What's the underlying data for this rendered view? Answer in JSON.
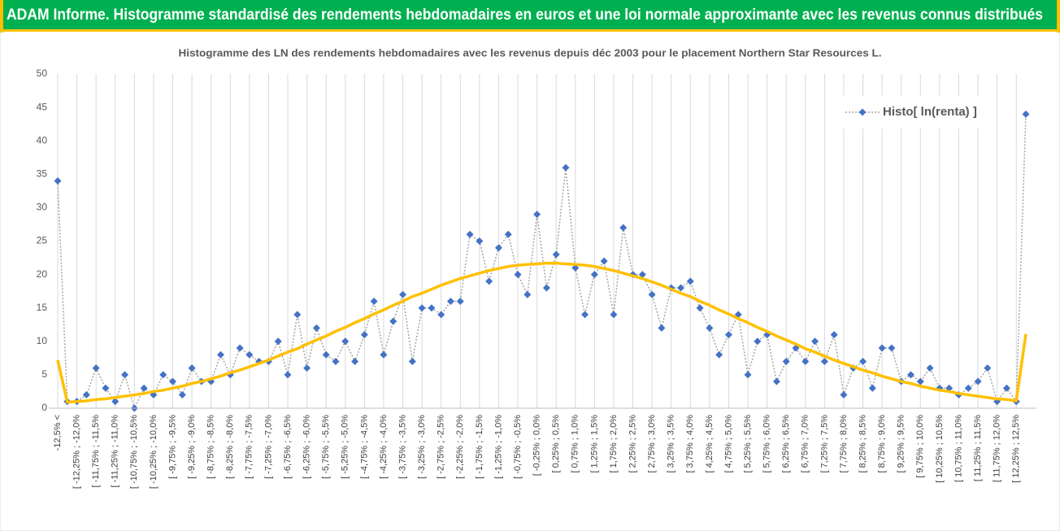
{
  "chart_data": {
    "type": "line",
    "banner": "ADAM Informe. Histogramme standardisé des rendements hebdomadaires en euros et une loi normale approximante avec les revenus connus distribués",
    "title": "Histogramme des LN des rendements hebdomadaires avec les revenus depuis déc 2003 pour le placement Northern  Star Resources L.",
    "categories": [
      "-12,5% <",
      null,
      "[ -12,25% ; -12,0%",
      null,
      "[ -11,75% ; -11,5%",
      null,
      "[ -11,25% ; -11,0%",
      null,
      "[ -10,75% ; -10,5%",
      null,
      "[ -10,25% ; -10,0%",
      null,
      "[ -9,75% ; -9,5%",
      null,
      "[ -9,25% ; -9,0%",
      null,
      "[ -8,75% ; -8,5%",
      null,
      "[ -8,25% ; -8,0%",
      null,
      "[ -7,75% ; -7,5%",
      null,
      "[ -7,25% ; -7,0%",
      null,
      "[ -6,75% ; -6,5%",
      null,
      "[ -6,25% ; -6,0%",
      null,
      "[ -5,75% ; -5,5%",
      null,
      "[ -5,25% ; -5,0%",
      null,
      "[ -4,75% ; -4,5%",
      null,
      "[ -4,25% ; -4,0%",
      null,
      "[ -3,75% ; -3,5%",
      null,
      "[ -3,25% ; -3,0%",
      null,
      "[ -2,75% ; -2,5%",
      null,
      "[ -2,25% ; -2,0%",
      null,
      "[ -1,75% ; -1,5%",
      null,
      "[ -1,25% ; -1,0%",
      null,
      "[ -0,75% ; -0,5%",
      null,
      "[ -0,25% ; 0,0%",
      null,
      "[ 0,25% ; 0,5%",
      null,
      "[ 0,75% ; 1,0%",
      null,
      "[ 1,25% ; 1,5%",
      null,
      "[ 1,75% ; 2,0%",
      null,
      "[ 2,25% ; 2,5%",
      null,
      "[ 2,75% ; 3,0%",
      null,
      "[ 3,25% ; 3,5%",
      null,
      "[ 3,75% ; 4,0%",
      null,
      "[ 4,25% ; 4,5%",
      null,
      "[ 4,75% ; 5,0%",
      null,
      "[ 5,25% ; 5,5%",
      null,
      "[ 5,75% ; 6,0%",
      null,
      "[ 6,25% ; 6,5%",
      null,
      "[ 6,75% ; 7,0%",
      null,
      "[ 7,25% ; 7,5%",
      null,
      "[ 7,75% ; 8,0%",
      null,
      "[ 8,25% ; 8,5%",
      null,
      "[ 8,75% ; 9,0%",
      null,
      "[ 9,25% ; 9,5%",
      null,
      "[ 9,75% ; 10,0%",
      null,
      "[ 10,25% ; 10,5%",
      null,
      "[ 10,75% ; 11,0%",
      null,
      "[ 11,25% ; 11,5%",
      null,
      "[ 11,75% ; 12,0%",
      null,
      "[ 12,25% ; 12,5%",
      null
    ],
    "series": [
      {
        "name": "Histo[ ln(renta) ]",
        "color": "#4472c4",
        "line_color": "#a5a5a5",
        "marker": "diamond",
        "values": [
          34,
          1,
          1,
          2,
          6,
          3,
          1,
          5,
          0,
          3,
          2,
          5,
          4,
          2,
          6,
          4,
          4,
          8,
          5,
          9,
          8,
          7,
          7,
          10,
          5,
          14,
          6,
          12,
          8,
          7,
          10,
          7,
          11,
          16,
          8,
          13,
          17,
          7,
          15,
          15,
          14,
          16,
          16,
          26,
          25,
          19,
          24,
          26,
          20,
          17,
          29,
          18,
          23,
          36,
          21,
          14,
          20,
          22,
          14,
          27,
          20,
          20,
          17,
          12,
          18,
          18,
          19,
          15,
          12,
          8,
          11,
          14,
          5,
          10,
          11,
          4,
          7,
          9,
          7,
          10,
          7,
          11,
          2,
          6,
          7,
          3,
          9,
          9,
          4,
          5,
          4,
          6,
          3,
          3,
          2,
          3,
          4,
          6,
          1,
          3,
          1,
          44
        ]
      },
      {
        "color": "#ffc000",
        "values": [
          7.2,
          0.9,
          1.0,
          1.1,
          1.3,
          1.4,
          1.6,
          1.8,
          2.0,
          2.2,
          2.5,
          2.7,
          3.0,
          3.3,
          3.7,
          4.0,
          4.4,
          4.8,
          5.3,
          5.7,
          6.2,
          6.7,
          7.2,
          7.8,
          8.4,
          8.9,
          9.6,
          10.2,
          10.8,
          11.5,
          12.1,
          12.8,
          13.4,
          14.1,
          14.7,
          15.4,
          16.0,
          16.7,
          17.2,
          17.8,
          18.4,
          18.9,
          19.4,
          19.8,
          20.2,
          20.6,
          20.9,
          21.2,
          21.4,
          21.5,
          21.6,
          21.7,
          21.7,
          21.6,
          21.5,
          21.4,
          21.2,
          20.9,
          20.6,
          20.2,
          19.8,
          19.4,
          18.9,
          18.4,
          17.8,
          17.2,
          16.7,
          16.0,
          15.4,
          14.7,
          14.1,
          13.4,
          12.8,
          12.1,
          11.5,
          10.8,
          10.2,
          9.6,
          8.9,
          8.4,
          7.8,
          7.2,
          6.7,
          6.2,
          5.7,
          5.3,
          4.8,
          4.4,
          4.0,
          3.7,
          3.3,
          3.0,
          2.7,
          2.5,
          2.2,
          2.0,
          1.8,
          1.6,
          1.4,
          1.3,
          1.1,
          11.1
        ]
      }
    ],
    "ylim": [
      0,
      50
    ],
    "yticks": [
      0,
      5,
      10,
      15,
      20,
      25,
      30,
      35,
      40,
      45,
      50
    ],
    "grid": "x",
    "legend": "top-right"
  }
}
